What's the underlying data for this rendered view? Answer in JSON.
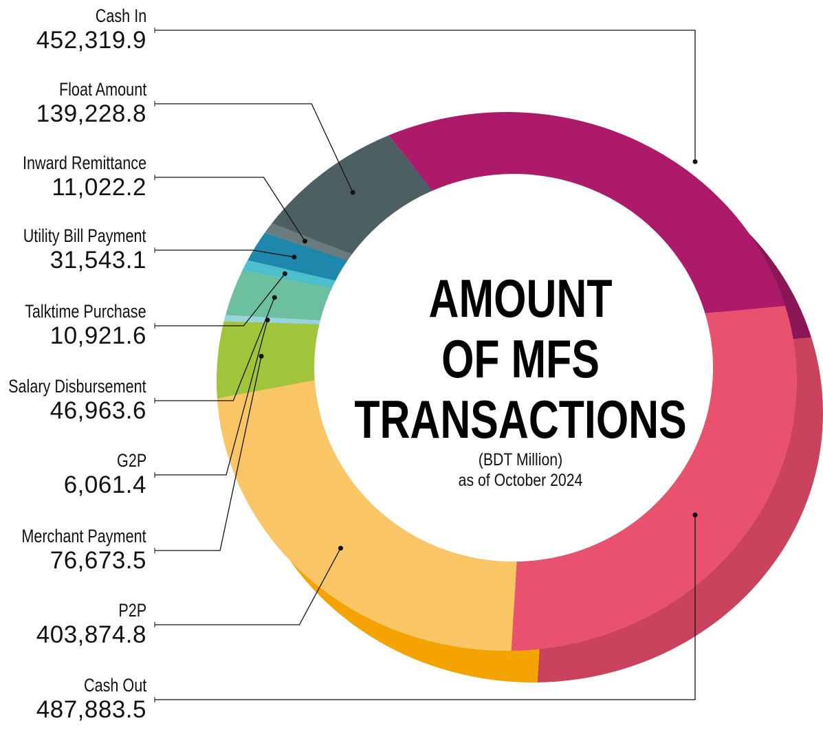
{
  "chart_data": {
    "type": "pie",
    "title": [
      "AMOUNT",
      "OF MFS",
      "TRANSACTIONS"
    ],
    "subtitle": "(BDT Million)",
    "date_note": "as of October 2024",
    "unit": "BDT Million",
    "slices": [
      {
        "label": "Cash In",
        "value": 452319.9,
        "display": "452,319.9",
        "color": "#AE1A6A",
        "dark": "#8A1655"
      },
      {
        "label": "Cash Out",
        "value": 487883.5,
        "display": "487,883.5",
        "color": "#E8526E",
        "dark": "#C9435C"
      },
      {
        "label": "P2P",
        "value": 403874.8,
        "display": "403,874.8",
        "color": "#FAC564",
        "dark": "#F4A300"
      },
      {
        "label": "Merchant Payment",
        "value": 76673.5,
        "display": "76,673.5",
        "color": "#A0C43A",
        "dark": "#84AA25"
      },
      {
        "label": "G2P",
        "value": 6061.4,
        "display": "6,061.4",
        "color": "#9AD3DC",
        "dark": "#7FBCC6"
      },
      {
        "label": "Salary Disbursement",
        "value": 46963.6,
        "display": "46,963.6",
        "color": "#6CC0A0",
        "dark": "#5AA68A"
      },
      {
        "label": "Talktime Purchase",
        "value": 10921.6,
        "display": "10,921.6",
        "color": "#4BBFCB",
        "dark": "#35A3B0"
      },
      {
        "label": "Utility Bill Payment",
        "value": 31543.1,
        "display": "31,543.1",
        "color": "#1E88AC",
        "dark": "#0A7B93"
      },
      {
        "label": "Inward Remittance",
        "value": 11022.2,
        "display": "11,022.2",
        "color": "#6A7B7E",
        "dark": "#56676A"
      },
      {
        "label": "Float Amount",
        "value": 139228.8,
        "display": "139,228.8",
        "color": "#4E5F63",
        "dark": "#435457"
      }
    ],
    "label_order": [
      "Cash In",
      "Float Amount",
      "Inward Remittance",
      "Utility Bill Payment",
      "Talktime Purchase",
      "Salary Disbursement",
      "G2P",
      "Merchant Payment",
      "P2P",
      "Cash Out"
    ]
  }
}
